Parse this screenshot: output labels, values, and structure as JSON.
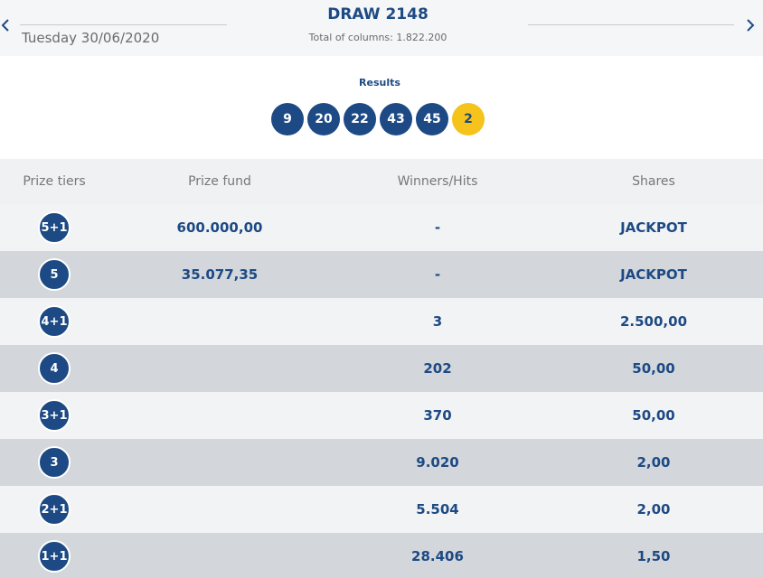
{
  "header": {
    "date": "Tuesday 30/06/2020",
    "title": "DRAW 2148",
    "total_columns": "Total of columns: 1.822.200",
    "prev_icon": "chevron-left-icon",
    "next_icon": "chevron-right-icon"
  },
  "results": {
    "label": "Results",
    "numbers": [
      "9",
      "20",
      "22",
      "43",
      "45"
    ],
    "bonus": "2"
  },
  "table": {
    "headers": [
      "Prize tiers",
      "Prize fund",
      "Winners/Hits",
      "Shares"
    ],
    "rows": [
      {
        "tier": "5+1",
        "fund": "600.000,00",
        "winners": "-",
        "shares": "JACKPOT"
      },
      {
        "tier": "5",
        "fund": "35.077,35",
        "winners": "-",
        "shares": "JACKPOT"
      },
      {
        "tier": "4+1",
        "fund": "",
        "winners": "3",
        "shares": "2.500,00"
      },
      {
        "tier": "4",
        "fund": "",
        "winners": "202",
        "shares": "50,00"
      },
      {
        "tier": "3+1",
        "fund": "",
        "winners": "370",
        "shares": "50,00"
      },
      {
        "tier": "3",
        "fund": "",
        "winners": "9.020",
        "shares": "2,00"
      },
      {
        "tier": "2+1",
        "fund": "",
        "winners": "5.504",
        "shares": "2,00"
      },
      {
        "tier": "1+1",
        "fund": "",
        "winners": "28.406",
        "shares": "1,50"
      }
    ]
  },
  "colors": {
    "primary": "#1d4a84",
    "bonus_ball": "#f5c31b",
    "row_light": "#f2f3f4",
    "row_dark": "#d3d6da"
  }
}
